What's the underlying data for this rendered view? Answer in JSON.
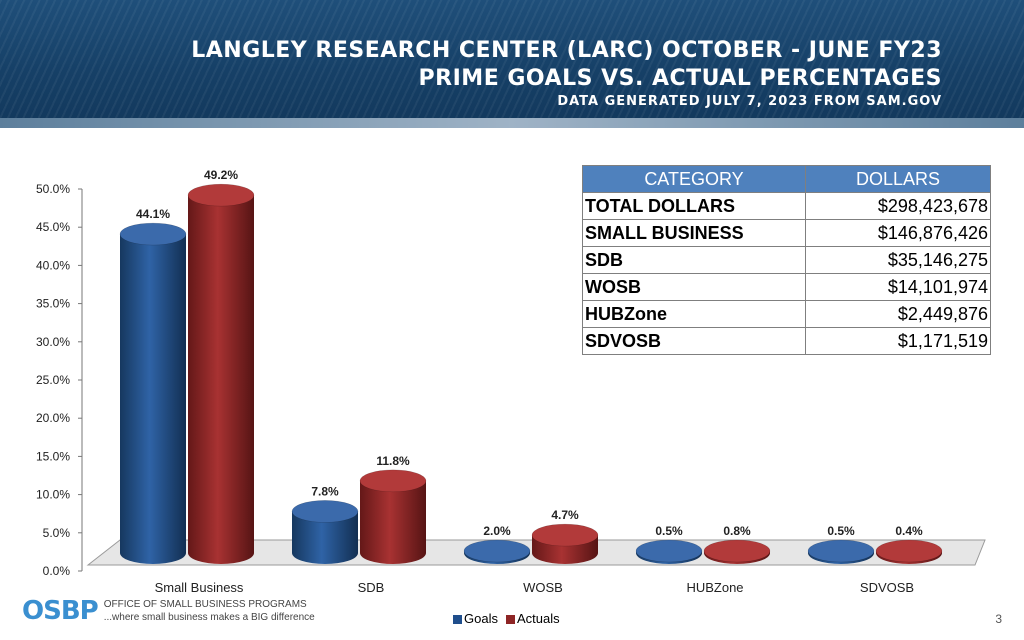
{
  "header": {
    "title_line1": "LANGLEY RESEARCH CENTER (LARC) OCTOBER - JUNE FY23",
    "title_line2": "PRIME GOALS VS. ACTUAL PERCENTAGES",
    "subtitle": "DATA GENERATED JULY 7, 2023 FROM SAM.GOV"
  },
  "chart_data": {
    "type": "bar",
    "categories": [
      "Small Business",
      "SDB",
      "WOSB",
      "HUBZone",
      "SDVOSB"
    ],
    "series": [
      {
        "name": "Goals",
        "values": [
          44.1,
          7.8,
          2.0,
          0.5,
          0.5
        ],
        "labels": [
          "44.1%",
          "7.8%",
          "2.0%",
          "0.5%",
          "0.5%"
        ],
        "color": "#1f4e8c"
      },
      {
        "name": "Actuals",
        "values": [
          49.2,
          11.8,
          4.7,
          0.8,
          0.4
        ],
        "labels": [
          "49.2%",
          "11.8%",
          "4.7%",
          "0.8%",
          "0.4%"
        ],
        "color": "#8e2525"
      }
    ],
    "ylim": [
      0,
      50
    ],
    "yticks": [
      "0.0%",
      "5.0%",
      "10.0%",
      "15.0%",
      "20.0%",
      "25.0%",
      "30.0%",
      "35.0%",
      "40.0%",
      "45.0%",
      "50.0%"
    ],
    "legend_position": "bottom"
  },
  "table": {
    "headers": [
      "CATEGORY",
      "DOLLARS"
    ],
    "rows": [
      [
        "TOTAL DOLLARS",
        "$298,423,678"
      ],
      [
        "SMALL BUSINESS",
        "$146,876,426"
      ],
      [
        "SDB",
        "$35,146,275"
      ],
      [
        "WOSB",
        "$14,101,974"
      ],
      [
        "HUBZone",
        "$2,449,876"
      ],
      [
        "SDVOSB",
        "$1,171,519"
      ]
    ]
  },
  "footer": {
    "logo_text": "OSBP",
    "org_line1": "OFFICE OF SMALL BUSINESS PROGRAMS",
    "org_line2": "...where small business makes a BIG difference",
    "page_number": "3"
  }
}
